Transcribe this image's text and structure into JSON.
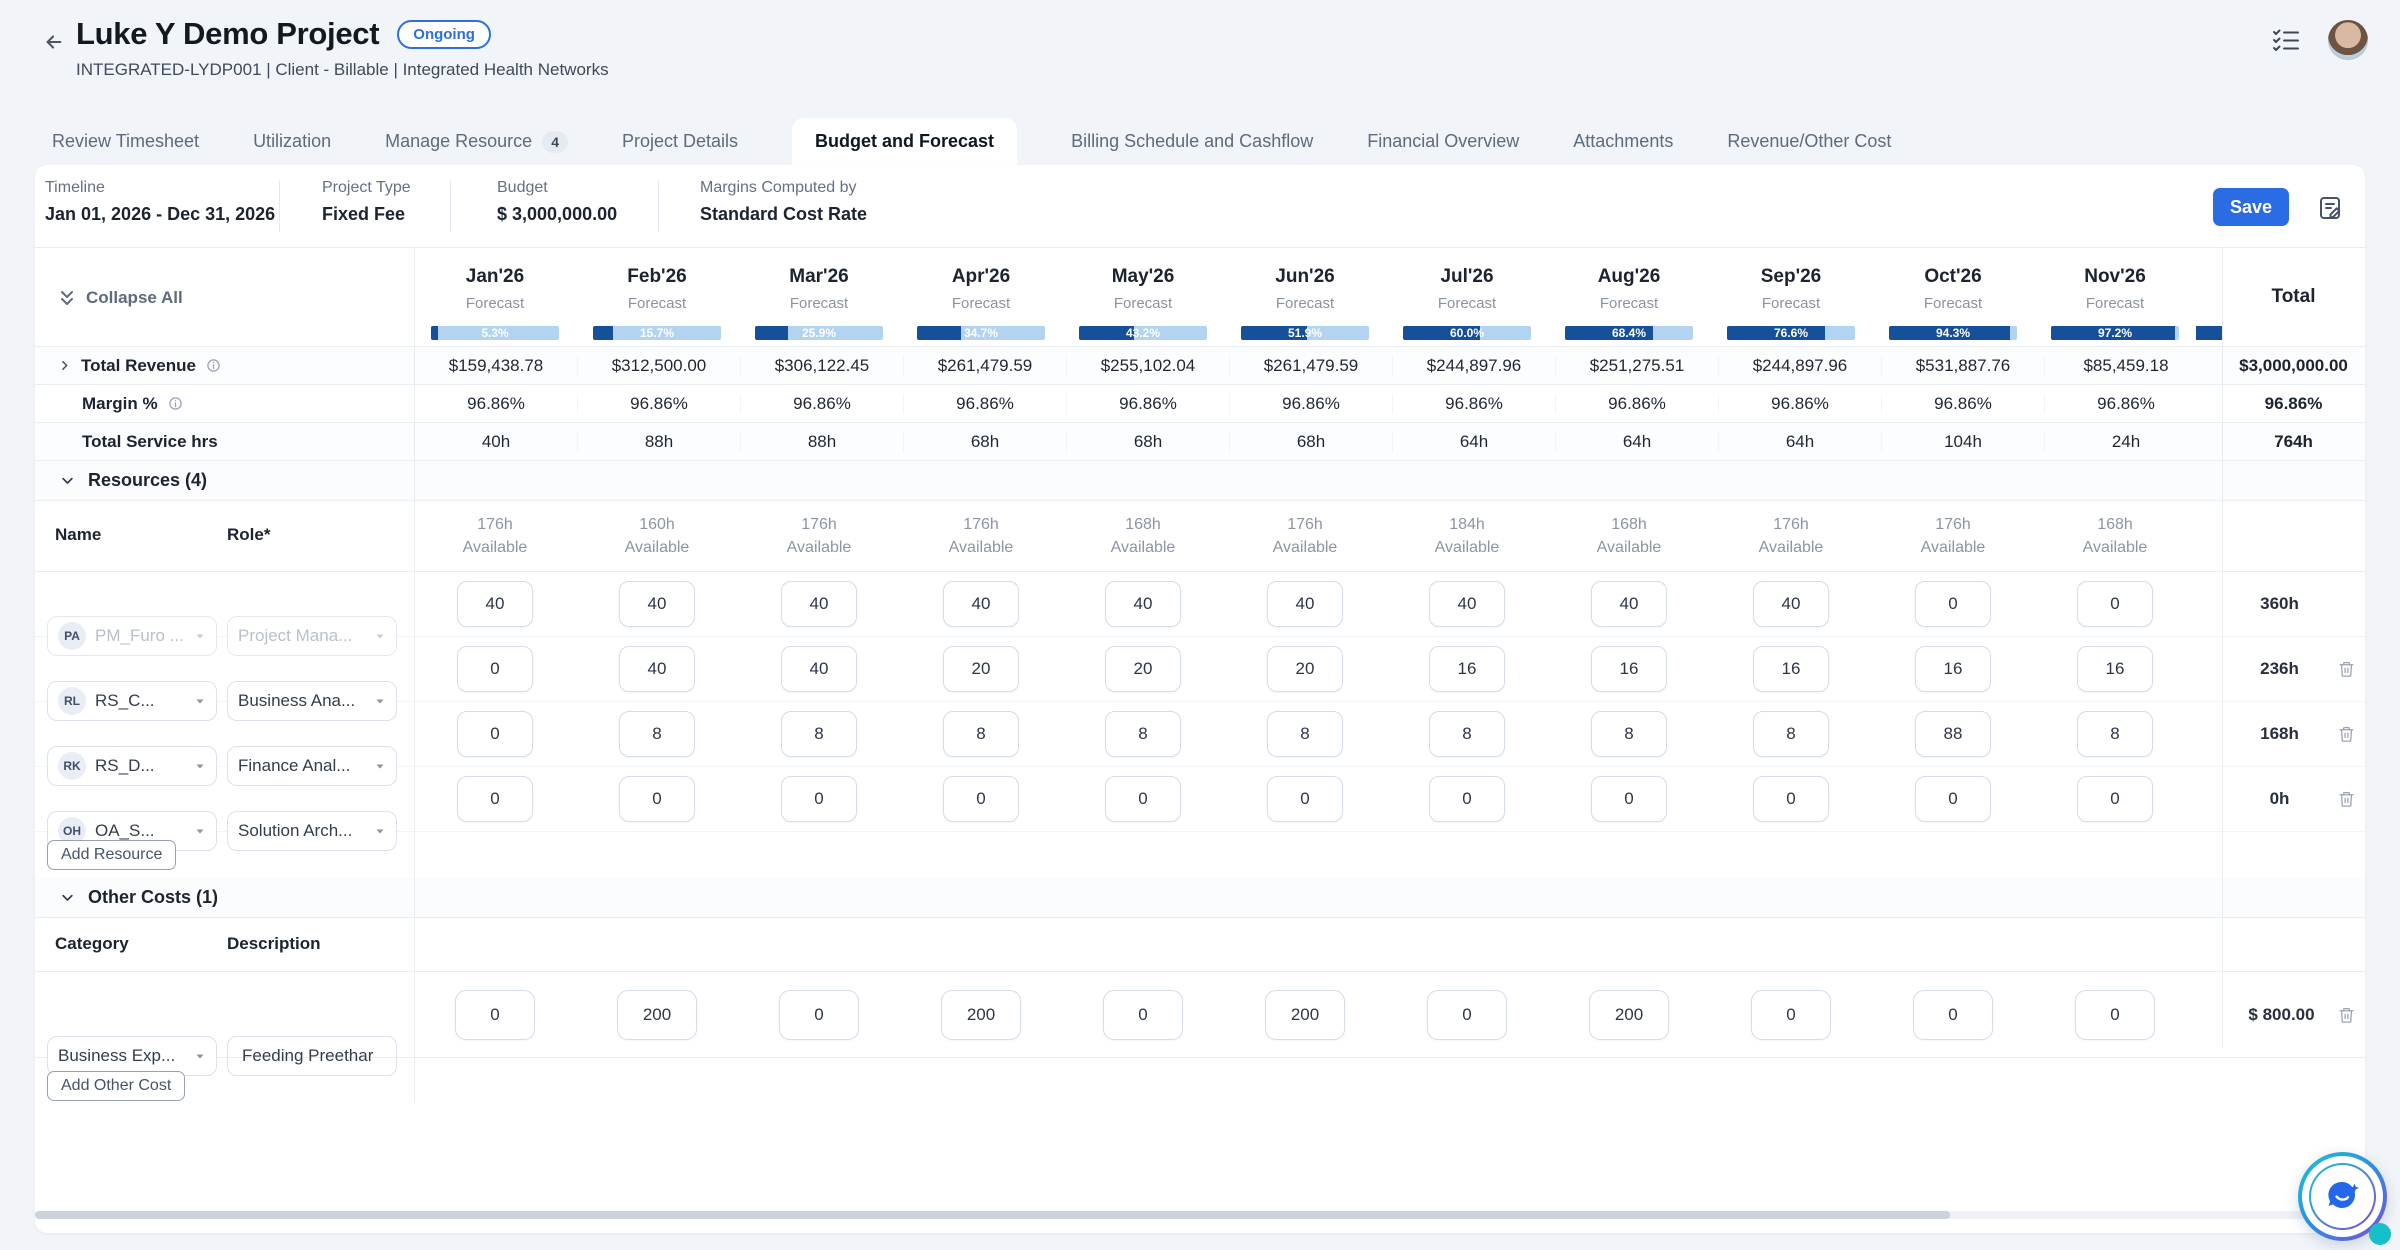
{
  "header": {
    "title": "Luke Y Demo Project",
    "status_badge": "Ongoing",
    "subtitle": "INTEGRATED-LYDP001  |  Client - Billable  |  Integrated Health Networks"
  },
  "tabs": [
    {
      "label": "Review Timesheet"
    },
    {
      "label": "Utilization"
    },
    {
      "label": "Manage Resource",
      "badge": "4"
    },
    {
      "label": "Project Details"
    },
    {
      "label": "Budget and Forecast",
      "active": true
    },
    {
      "label": "Billing Schedule and Cashflow"
    },
    {
      "label": "Financial Overview"
    },
    {
      "label": "Attachments"
    },
    {
      "label": "Revenue/Other Cost"
    }
  ],
  "info_bar": {
    "fields": [
      {
        "label": "Timeline",
        "value": "Jan 01, 2026 - Dec 31, 2026"
      },
      {
        "label": "Project Type",
        "value": "Fixed Fee"
      },
      {
        "label": "Budget",
        "value": "$ 3,000,000.00"
      },
      {
        "label": "Margins Computed by",
        "value": "Standard Cost Rate"
      }
    ],
    "save_label": "Save"
  },
  "table": {
    "collapse_all_label": "Collapse All",
    "total_header": "Total",
    "months": [
      {
        "label": "Jan'26",
        "sublabel": "Forecast",
        "forecast_pct": "5.3%",
        "fill": 5.3
      },
      {
        "label": "Feb'26",
        "sublabel": "Forecast",
        "forecast_pct": "15.7%",
        "fill": 15.7
      },
      {
        "label": "Mar'26",
        "sublabel": "Forecast",
        "forecast_pct": "25.9%",
        "fill": 25.9
      },
      {
        "label": "Apr'26",
        "sublabel": "Forecast",
        "forecast_pct": "34.7%",
        "fill": 34.7
      },
      {
        "label": "May'26",
        "sublabel": "Forecast",
        "forecast_pct": "43.2%",
        "fill": 43.2
      },
      {
        "label": "Jun'26",
        "sublabel": "Forecast",
        "forecast_pct": "51.9%",
        "fill": 51.9
      },
      {
        "label": "Jul'26",
        "sublabel": "Forecast",
        "forecast_pct": "60.0%",
        "fill": 60.0
      },
      {
        "label": "Aug'26",
        "sublabel": "Forecast",
        "forecast_pct": "68.4%",
        "fill": 68.4
      },
      {
        "label": "Sep'26",
        "sublabel": "Forecast",
        "forecast_pct": "76.6%",
        "fill": 76.6
      },
      {
        "label": "Oct'26",
        "sublabel": "Forecast",
        "forecast_pct": "94.3%",
        "fill": 94.3
      },
      {
        "label": "Nov'26",
        "sublabel": "Forecast",
        "forecast_pct": "97.2%",
        "fill": 97.2
      }
    ],
    "revenue": {
      "label": "Total Revenue",
      "values": [
        "$159,438.78",
        "$312,500.00",
        "$306,122.45",
        "$261,479.59",
        "$255,102.04",
        "$261,479.59",
        "$244,897.96",
        "$251,275.51",
        "$244,897.96",
        "$531,887.76",
        "$85,459.18"
      ],
      "total": "$3,000,000.00"
    },
    "margin": {
      "label": "Margin %",
      "values": [
        "96.86%",
        "96.86%",
        "96.86%",
        "96.86%",
        "96.86%",
        "96.86%",
        "96.86%",
        "96.86%",
        "96.86%",
        "96.86%",
        "96.86%"
      ],
      "total": "96.86%"
    },
    "service_hours": {
      "label": "Total Service hrs",
      "values": [
        "40h",
        "88h",
        "88h",
        "68h",
        "68h",
        "68h",
        "64h",
        "64h",
        "64h",
        "104h",
        "24h"
      ],
      "total": "764h"
    },
    "resources": {
      "section_label": "Resources (4)",
      "name_header": "Name",
      "role_header": "Role*",
      "availability_suffix": "Available",
      "availability": [
        "176h",
        "160h",
        "176h",
        "176h",
        "168h",
        "176h",
        "184h",
        "168h",
        "176h",
        "176h",
        "168h"
      ],
      "rows": [
        {
          "initials": "PA",
          "name": "PM_Furo ...",
          "role": "Project Mana...",
          "hours": [
            "40",
            "40",
            "40",
            "40",
            "40",
            "40",
            "40",
            "40",
            "40",
            "0",
            "0"
          ],
          "total": "360h"
        },
        {
          "initials": "RL",
          "name": "RS_C...",
          "role": "Business Ana...",
          "hours": [
            "0",
            "40",
            "40",
            "20",
            "20",
            "20",
            "16",
            "16",
            "16",
            "16",
            "16"
          ],
          "total": "236h"
        },
        {
          "initials": "RK",
          "name": "RS_D...",
          "role": "Finance Anal...",
          "hours": [
            "0",
            "8",
            "8",
            "8",
            "8",
            "8",
            "8",
            "8",
            "8",
            "88",
            "8"
          ],
          "total": "168h"
        },
        {
          "initials": "OH",
          "name": "OA_S...",
          "role": "Solution Arch...",
          "hours": [
            "0",
            "0",
            "0",
            "0",
            "0",
            "0",
            "0",
            "0",
            "0",
            "0",
            "0"
          ],
          "total": "0h"
        }
      ],
      "add_button_label": "Add Resource"
    },
    "other_costs": {
      "section_label": "Other Costs (1)",
      "category_header": "Category",
      "description_header": "Description",
      "rows": [
        {
          "category": "Business Exp...",
          "description": "Feeding Preethar",
          "values": [
            "0",
            "200",
            "0",
            "200",
            "0",
            "200",
            "0",
            "200",
            "0",
            "0",
            "0"
          ],
          "total": "$ 800.00"
        }
      ],
      "add_button_label": "Add Other Cost"
    }
  },
  "colors": {
    "accent_blue": "#2b6be4",
    "bar_fill": "#164f9a",
    "bar_track": "#b3d4f1",
    "page_background": "#f1f4f8"
  }
}
